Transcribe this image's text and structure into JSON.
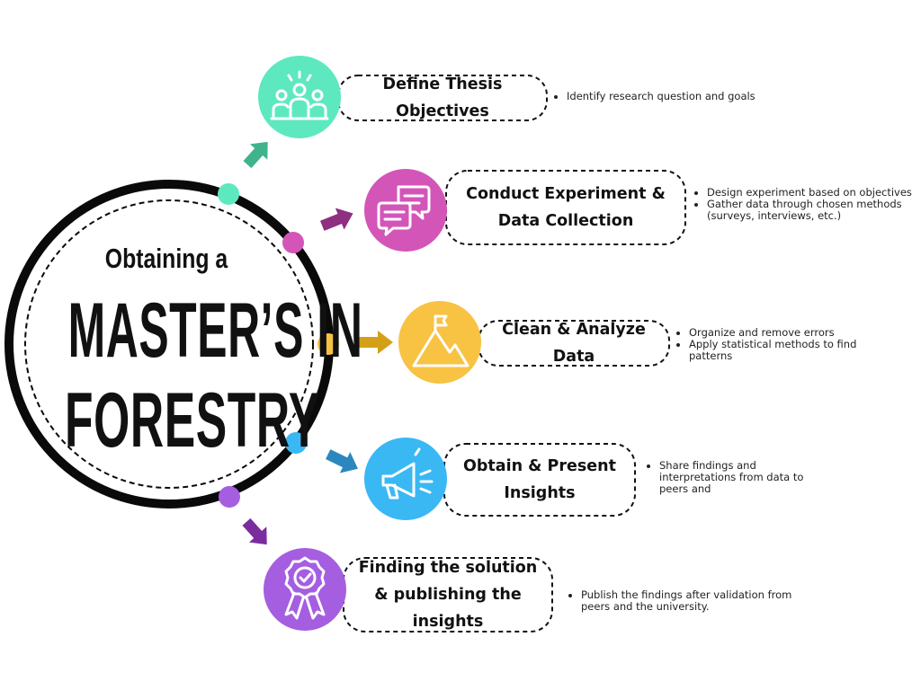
{
  "hub": {
    "line1": "Obtaining a",
    "line2": "MASTER’S IN",
    "line3": "FORESTRY"
  },
  "steps": [
    {
      "title": "Define Thesis Objectives",
      "color": "#5ee8c0",
      "icon": "team-people-icon",
      "notes": [
        "Identify research question and goals"
      ]
    },
    {
      "title": "Conduct Experiment & Data Collection",
      "color": "#d455b8",
      "icon": "chat-bubbles-icon",
      "notes": [
        "Design experiment based on objectives",
        "Gather data through chosen methods (surveys, interviews, etc.)"
      ]
    },
    {
      "title": "Clean & Analyze Data",
      "color": "#f8c243",
      "icon": "mountain-flag-icon",
      "notes": [
        "Organize and remove errors",
        "Apply statistical methods to find patterns"
      ]
    },
    {
      "title": "Obtain & Present Insights",
      "color": "#39b8f4",
      "icon": "megaphone-icon",
      "notes": [
        "Share findings and interpretations from data to peers and"
      ]
    },
    {
      "title": "Finding the solution & publishing the insights",
      "color": "#a55ee0",
      "icon": "award-ribbon-icon",
      "notes": [
        "Publish the findings after validation from peers and the university."
      ]
    }
  ],
  "dot_colors": [
    "#5ee8c0",
    "#d455b8",
    "#f8c243",
    "#39b8f4",
    "#a55ee0"
  ],
  "arrow_colors": [
    "#3fb38c",
    "#8e2f7f",
    "#d4a017",
    "#2b87bd",
    "#7b2c9e"
  ]
}
